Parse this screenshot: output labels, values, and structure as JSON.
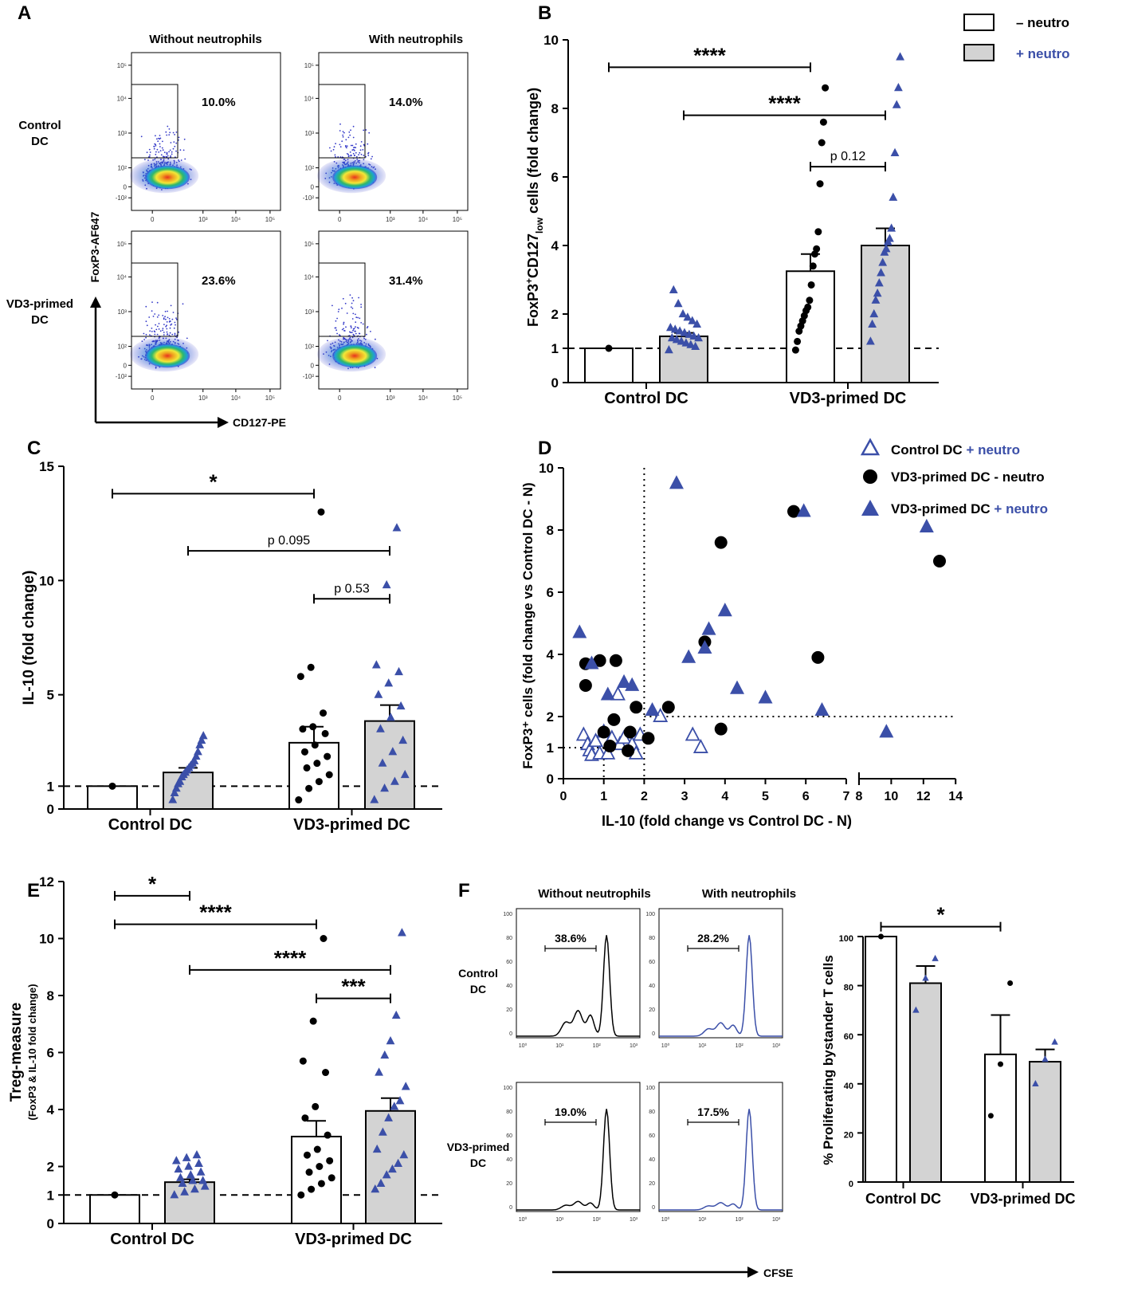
{
  "colors": {
    "neutro": "#3b4fa8",
    "bar_plus": "#d3d3d3",
    "bar_minus": "#ffffff",
    "black": "#000000"
  },
  "panel_letters": {
    "a": "A",
    "b": "B",
    "c": "C",
    "d": "D",
    "e": "E",
    "f": "F"
  },
  "flow_a": {
    "col_labels": [
      "Without neutrophils",
      "With neutrophils"
    ],
    "row_labels": [
      [
        "Control",
        "DC"
      ],
      [
        "VD3-primed",
        "DC"
      ]
    ],
    "y_axis": "FoxP3-AF647",
    "x_axis": "CD127-PE",
    "percents": [
      "10.0%",
      "14.0%",
      "23.6%",
      "31.4%"
    ],
    "ticks_y": [
      "10⁵",
      "10⁴",
      "10³",
      "10²",
      "0",
      "-10²"
    ],
    "ticks_x": [
      "0",
      "10³",
      "10⁴",
      "10⁵"
    ]
  },
  "legend_b": {
    "minus": "– neutro",
    "plus": "+ neutro"
  },
  "legend_d": {
    "c1_prefix": "Control DC ",
    "c1_suffix": "+ neutro",
    "c2": "VD3-primed DC - neutro",
    "c3_prefix": "VD3-primed DC ",
    "c3_suffix": "+ neutro"
  },
  "flow_f": {
    "col_labels": [
      "Without neutrophils",
      "With neutrophils"
    ],
    "row_labels": [
      [
        "Control",
        "DC"
      ],
      [
        "VD3-primed",
        "DC"
      ]
    ],
    "percents": [
      "38.6%",
      "28.2%",
      "19.0%",
      "17.5%"
    ],
    "x_axis": "CFSE",
    "ticks_y": [
      "100",
      "80",
      "60",
      "40",
      "20",
      "0"
    ],
    "ticks_x": [
      "10⁰",
      "10¹",
      "10²",
      "10³"
    ]
  },
  "chart_data": [
    {
      "panel": "B",
      "type": "bar",
      "categories": [
        "Control DC",
        "VD3-primed DC"
      ],
      "series": [
        {
          "name": "– neutro",
          "values": [
            1.0,
            3.25
          ],
          "sem": [
            0,
            0.5
          ]
        },
        {
          "name": "+ neutro",
          "values": [
            1.35,
            4.0
          ],
          "sem": [
            0.1,
            0.5
          ]
        }
      ],
      "points": [
        [
          [
            1.0
          ],
          [
            0.95,
            1.05,
            1.1,
            1.15,
            1.2,
            1.25,
            1.3,
            1.3,
            1.35,
            1.4,
            1.45,
            1.5,
            1.55,
            1.6,
            1.7,
            1.8,
            1.9,
            2.0,
            2.3,
            2.7
          ]
        ],
        [
          [
            0.95,
            1.2,
            1.5,
            1.65,
            1.8,
            1.95,
            2.1,
            2.2,
            2.4,
            2.85,
            3.4,
            3.75,
            3.9,
            4.4,
            5.8,
            7.0,
            7.6,
            8.6
          ],
          [
            1.2,
            1.7,
            2.0,
            2.4,
            2.6,
            2.9,
            3.2,
            3.5,
            3.8,
            3.9,
            4.1,
            4.2,
            4.5,
            5.4,
            6.7,
            8.1,
            8.6,
            9.5
          ]
        ]
      ],
      "ylabel_main": "FoxP3",
      "ylabel_sup": "+",
      "ylabel_mid": "CD127",
      "ylabel_sub": "low",
      "ylabel_end": " cells (fold change)",
      "ylim": [
        0,
        10
      ],
      "yticks": [
        0,
        1,
        2,
        4,
        6,
        8,
        10
      ],
      "comparisons": [
        {
          "from": [
            0,
            0
          ],
          "to": [
            1,
            0
          ],
          "y": 9.2,
          "label": "****"
        },
        {
          "from": [
            0,
            1
          ],
          "to": [
            1,
            1
          ],
          "y": 7.8,
          "label": "****"
        },
        {
          "from": [
            1,
            0
          ],
          "to": [
            1,
            1
          ],
          "y": 6.3,
          "label": "p 0.12"
        }
      ]
    },
    {
      "panel": "C",
      "type": "bar",
      "categories": [
        "Control DC",
        "VD3-primed DC"
      ],
      "series": [
        {
          "name": "– neutro",
          "values": [
            1.0,
            2.9
          ],
          "sem": [
            0,
            0.7
          ]
        },
        {
          "name": "+ neutro",
          "values": [
            1.6,
            3.85
          ],
          "sem": [
            0.2,
            0.7
          ]
        }
      ],
      "points": [
        [
          [
            1.0
          ],
          [
            0.4,
            0.7,
            0.9,
            1.1,
            1.2,
            1.4,
            1.5,
            1.6,
            1.7,
            1.8,
            1.9,
            2.0,
            2.1,
            2.3,
            2.5,
            2.8,
            3.0,
            3.2
          ]
        ],
        [
          [
            0.4,
            0.9,
            1.2,
            1.5,
            1.8,
            2.0,
            2.3,
            2.5,
            2.8,
            3.3,
            3.5,
            3.6,
            4.2,
            5.8,
            6.2,
            13.0
          ],
          [
            0.4,
            0.9,
            1.2,
            1.5,
            2.0,
            2.5,
            3.0,
            3.5,
            4.0,
            4.5,
            5.0,
            5.5,
            6.0,
            6.3,
            9.8,
            12.3
          ]
        ]
      ],
      "ylabel": "IL-10 (fold change)",
      "ylim": [
        0,
        15
      ],
      "yticks": [
        0,
        1,
        5,
        10,
        15
      ],
      "comparisons": [
        {
          "from": [
            0,
            0
          ],
          "to": [
            1,
            0
          ],
          "y": 13.8,
          "label": "*"
        },
        {
          "from": [
            0,
            1
          ],
          "to": [
            1,
            1
          ],
          "y": 11.3,
          "label": "p 0.095"
        },
        {
          "from": [
            1,
            0
          ],
          "to": [
            1,
            1
          ],
          "y": 9.2,
          "label": "p 0.53"
        }
      ]
    },
    {
      "panel": "D",
      "type": "scatter",
      "xlabel": "IL-10 (fold change vs Control DC - N)",
      "ylabel": "FoxP3⁺ cells (fold change vs Control DC - N)",
      "xticks_left": [
        0,
        1,
        2,
        3,
        4,
        5,
        6,
        7
      ],
      "xticks_right": [
        8,
        10,
        12,
        14
      ],
      "yticks": [
        0,
        1,
        2,
        4,
        6,
        8,
        10
      ],
      "ylim": [
        0,
        10
      ],
      "cutoffs": {
        "x_full": 2,
        "x_short": 1,
        "y_full": 2,
        "y_short": 1
      },
      "series": [
        {
          "name": "Control DC + neutro",
          "marker": "open-triangle",
          "points": [
            [
              0.5,
              1.4
            ],
            [
              0.6,
              1.1
            ],
            [
              0.65,
              0.9
            ],
            [
              0.7,
              0.75
            ],
            [
              0.8,
              1.2
            ],
            [
              0.9,
              0.8
            ],
            [
              1.0,
              1.5
            ],
            [
              1.1,
              0.8
            ],
            [
              1.2,
              1.3
            ],
            [
              1.35,
              2.7
            ],
            [
              1.4,
              1.1
            ],
            [
              1.5,
              1.3
            ],
            [
              1.7,
              1.1
            ],
            [
              1.8,
              0.8
            ],
            [
              1.9,
              1.4
            ],
            [
              2.4,
              2.0
            ],
            [
              3.2,
              1.4
            ],
            [
              3.4,
              1.0
            ]
          ]
        },
        {
          "name": "VD3-primed DC - neutro",
          "marker": "filled-circle",
          "points": [
            [
              0.55,
              3.7
            ],
            [
              0.55,
              3.0
            ],
            [
              0.9,
              3.8
            ],
            [
              1.0,
              1.5
            ],
            [
              1.15,
              1.05
            ],
            [
              1.25,
              1.9
            ],
            [
              1.3,
              3.8
            ],
            [
              1.6,
              0.9
            ],
            [
              1.65,
              1.5
            ],
            [
              1.8,
              2.3
            ],
            [
              2.1,
              1.3
            ],
            [
              2.6,
              2.3
            ],
            [
              3.5,
              4.4
            ],
            [
              3.9,
              1.6
            ],
            [
              3.9,
              7.6
            ],
            [
              5.7,
              8.6
            ],
            [
              6.3,
              3.9
            ],
            [
              13.0,
              7.0
            ]
          ]
        },
        {
          "name": "VD3-primed DC + neutro",
          "marker": "filled-triangle",
          "points": [
            [
              0.4,
              4.7
            ],
            [
              0.7,
              3.7
            ],
            [
              1.1,
              2.7
            ],
            [
              1.5,
              3.1
            ],
            [
              1.7,
              3.0
            ],
            [
              2.2,
              2.2
            ],
            [
              2.8,
              9.5
            ],
            [
              3.1,
              3.9
            ],
            [
              3.5,
              4.2
            ],
            [
              3.6,
              4.8
            ],
            [
              4.0,
              5.4
            ],
            [
              4.3,
              2.9
            ],
            [
              5.0,
              2.6
            ],
            [
              5.95,
              8.6
            ],
            [
              6.4,
              2.2
            ],
            [
              9.7,
              1.5
            ],
            [
              12.2,
              8.1
            ]
          ]
        }
      ]
    },
    {
      "panel": "E",
      "type": "bar",
      "categories": [
        "Control DC",
        "VD3-primed DC"
      ],
      "series": [
        {
          "name": "– neutro",
          "values": [
            1.0,
            3.05
          ],
          "sem": [
            0,
            0.55
          ]
        },
        {
          "name": "+ neutro",
          "values": [
            1.45,
            3.95
          ],
          "sem": [
            0.1,
            0.45
          ]
        }
      ],
      "points": [
        [
          [
            1.0
          ],
          [
            1.0,
            1.1,
            1.2,
            1.3,
            1.4,
            1.5,
            1.5,
            1.6,
            1.7,
            1.8,
            1.9,
            2.0,
            2.1,
            2.2,
            2.3,
            2.4
          ]
        ],
        [
          [
            1.0,
            1.2,
            1.4,
            1.6,
            1.8,
            2.0,
            2.2,
            2.4,
            2.6,
            3.1,
            3.7,
            4.1,
            5.3,
            5.7,
            7.1,
            10.0
          ],
          [
            1.2,
            1.4,
            1.7,
            1.9,
            2.1,
            2.4,
            2.6,
            3.2,
            3.7,
            4.1,
            4.3,
            4.8,
            5.3,
            5.9,
            6.4,
            7.3,
            10.2
          ]
        ]
      ],
      "ylabel": "Treg-measure",
      "ylabel_sub": "(FoxP3 & IL-10 fold change)",
      "ylim": [
        0,
        12
      ],
      "yticks": [
        0,
        1,
        2,
        4,
        6,
        8,
        10,
        12
      ],
      "comparisons": [
        {
          "from": [
            0,
            0
          ],
          "to": [
            0,
            1
          ],
          "y": 11.5,
          "label": "*"
        },
        {
          "from": [
            0,
            0
          ],
          "to": [
            1,
            0
          ],
          "y": 10.5,
          "label": "****"
        },
        {
          "from": [
            0,
            1
          ],
          "to": [
            1,
            1
          ],
          "y": 8.9,
          "label": "****"
        },
        {
          "from": [
            1,
            0
          ],
          "to": [
            1,
            1
          ],
          "y": 7.9,
          "label": "***"
        }
      ]
    },
    {
      "panel": "F",
      "type": "bar",
      "categories": [
        "Control DC",
        "VD3-primed DC"
      ],
      "series": [
        {
          "name": "– neutro",
          "values": [
            100,
            52
          ],
          "sem": [
            0,
            16
          ]
        },
        {
          "name": "+ neutro",
          "values": [
            81,
            49
          ],
          "sem": [
            7,
            5
          ]
        }
      ],
      "points": [
        [
          [
            100
          ],
          [
            70,
            83,
            91
          ]
        ],
        [
          [
            27,
            48,
            81
          ],
          [
            40,
            50,
            57
          ]
        ]
      ],
      "ylabel": "% Proliferating bystander T cells",
      "ylim": [
        0,
        100
      ],
      "yticks": [
        0,
        20,
        40,
        60,
        80,
        100
      ],
      "comparisons": [
        {
          "from": [
            0,
            0
          ],
          "to": [
            1,
            0
          ],
          "y": 104,
          "label": "*"
        }
      ]
    }
  ]
}
